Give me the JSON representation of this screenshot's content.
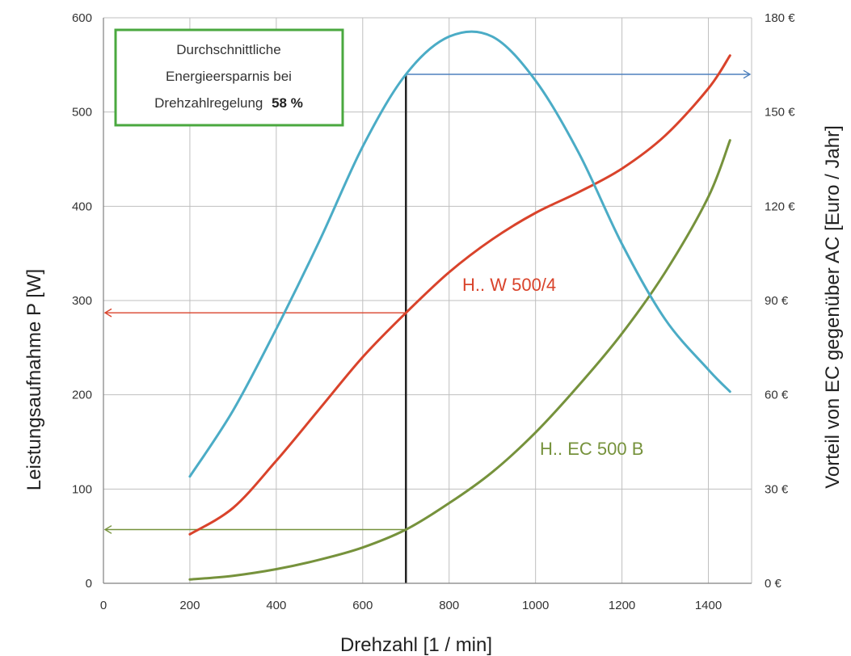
{
  "chart_data": {
    "type": "line",
    "title": "",
    "xlabel": "Drehzahl [1 / min]",
    "ylabel": "Leistungsaufnahme P [W]",
    "ylabel_right": "Vorteil von EC gegenüber AC [Euro / Jahr]",
    "xlim": [
      0,
      1500
    ],
    "ylim": [
      0,
      600
    ],
    "ylim_right": [
      0,
      180
    ],
    "x_ticks": [
      "0",
      "200",
      "400",
      "600",
      "800",
      "1000",
      "1200",
      "1400"
    ],
    "y_ticks_left": [
      "0",
      "100",
      "200",
      "300",
      "400",
      "500",
      "600"
    ],
    "y_ticks_right": [
      "0 €",
      "30 €",
      "60 €",
      "90 €",
      "120 €",
      "150 €",
      "180 €"
    ],
    "grid": true,
    "series": [
      {
        "name": "H.. W 500/4",
        "axis": "left",
        "color": "#d9432b",
        "x": [
          200,
          300,
          400,
          500,
          600,
          700,
          800,
          900,
          1000,
          1100,
          1200,
          1300,
          1400,
          1450
        ],
        "values": [
          52,
          80,
          130,
          185,
          240,
          287,
          330,
          365,
          393,
          415,
          440,
          475,
          525,
          560
        ]
      },
      {
        "name": "H.. EC 500 B",
        "axis": "left",
        "color": "#76923c",
        "x": [
          200,
          300,
          400,
          500,
          600,
          700,
          800,
          900,
          1000,
          1100,
          1200,
          1300,
          1400,
          1450
        ],
        "values": [
          4,
          8,
          15,
          25,
          38,
          57,
          85,
          118,
          160,
          210,
          265,
          330,
          410,
          470
        ]
      },
      {
        "name": "",
        "axis": "right",
        "color": "#4bacc6",
        "x": [
          200,
          300,
          400,
          500,
          600,
          700,
          800,
          900,
          1000,
          1100,
          1200,
          1300,
          1400,
          1450
        ],
        "values": [
          34,
          55,
          81,
          109,
          139,
          162,
          174,
          174,
          160,
          137,
          108,
          84,
          68,
          61
        ]
      }
    ],
    "reference_x": 700,
    "reference_lines": [
      {
        "color": "#d9432b",
        "axis": "left",
        "x_from": 700,
        "y": 287
      },
      {
        "color": "#76923c",
        "axis": "left",
        "x_from": 700,
        "y": 57
      },
      {
        "color": "#4f81bd",
        "axis": "right",
        "x_from": 700,
        "y": 162
      }
    ],
    "annotation": {
      "lines": [
        "Durchschnittliche",
        "Energieersparnis bei",
        "Drehzahlregelung"
      ],
      "highlight": "58 %",
      "border_color": "#4aa83f"
    }
  }
}
